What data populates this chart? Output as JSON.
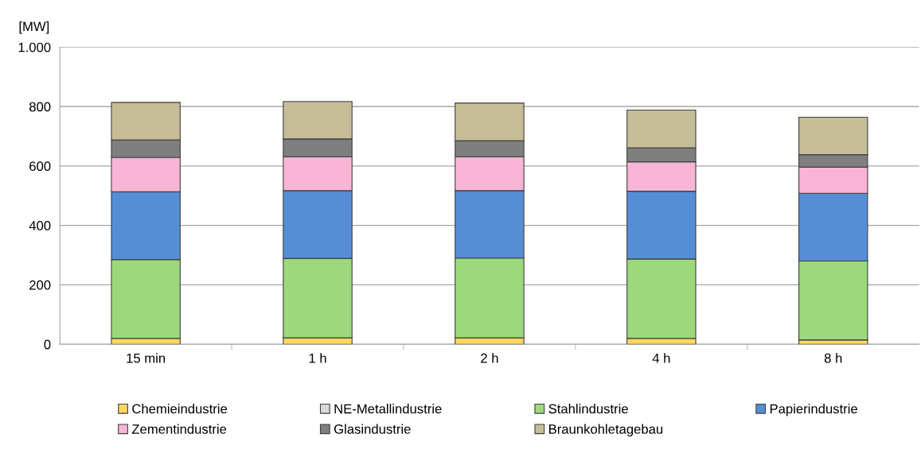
{
  "chart_data": {
    "type": "bar",
    "stacked": true,
    "ylabel": "[MW]",
    "categories": [
      "15 min",
      "1 h",
      "2 h",
      "4 h",
      "8 h"
    ],
    "series": [
      {
        "name": "Chemieindustrie",
        "color": "#fdd760",
        "values": [
          20,
          22,
          22,
          20,
          15
        ]
      },
      {
        "name": "NE-Metallindustrie",
        "color": "#d9d9d9",
        "values": [
          0,
          0,
          0,
          0,
          0
        ]
      },
      {
        "name": "Stahlindustrie",
        "color": "#9dd87d",
        "values": [
          265,
          267,
          268,
          267,
          265
        ]
      },
      {
        "name": "Papierindustrie",
        "color": "#558ed5",
        "values": [
          228,
          228,
          227,
          228,
          228
        ]
      },
      {
        "name": "Zementindustrie",
        "color": "#f9b5d5",
        "values": [
          116,
          114,
          114,
          99,
          88
        ]
      },
      {
        "name": "Glasindustrie",
        "color": "#7f7f7f",
        "values": [
          59,
          60,
          54,
          47,
          42
        ]
      },
      {
        "name": "Braunkohletagebau",
        "color": "#c4bd97",
        "values": [
          126,
          126,
          127,
          127,
          126
        ]
      }
    ],
    "ylim": [
      0,
      1000
    ],
    "yticks": [
      0,
      200,
      400,
      600,
      800,
      {
        "value": 1000,
        "label": "1.000"
      }
    ],
    "grid": "y",
    "legend": "bottom"
  }
}
